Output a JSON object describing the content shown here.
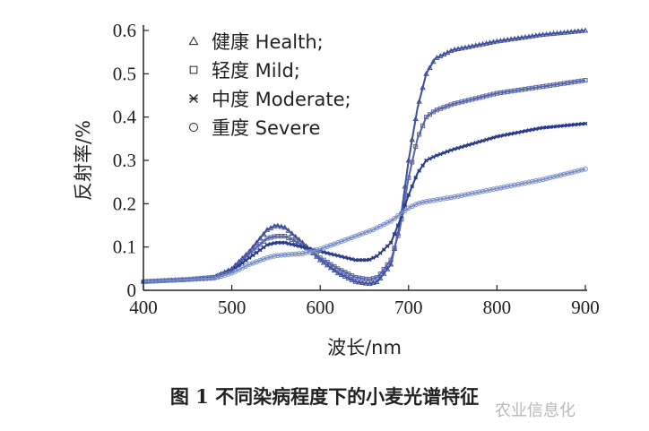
{
  "chart_data": {
    "type": "line",
    "title": "",
    "xlabel": "波长/nm",
    "ylabel": "反射率/%",
    "xlim": [
      400,
      900
    ],
    "ylim": [
      0,
      0.6
    ],
    "xticks": [
      "400",
      "500",
      "600",
      "700",
      "800",
      "900"
    ],
    "yticks": [
      "0",
      "0.1",
      "0.2",
      "0.3",
      "0.4",
      "0.5",
      "0.6"
    ],
    "grid": false,
    "legend_position": "top-left",
    "series": [
      {
        "name": "健康 Health;",
        "marker": "triangle",
        "color": "#3f4f9c",
        "points": [
          [
            400,
            0.02
          ],
          [
            450,
            0.025
          ],
          [
            480,
            0.03
          ],
          [
            500,
            0.05
          ],
          [
            520,
            0.09
          ],
          [
            540,
            0.14
          ],
          [
            550,
            0.15
          ],
          [
            560,
            0.145
          ],
          [
            580,
            0.11
          ],
          [
            600,
            0.07
          ],
          [
            620,
            0.04
          ],
          [
            640,
            0.02
          ],
          [
            655,
            0.015
          ],
          [
            665,
            0.02
          ],
          [
            680,
            0.06
          ],
          [
            690,
            0.15
          ],
          [
            700,
            0.3
          ],
          [
            710,
            0.42
          ],
          [
            720,
            0.5
          ],
          [
            730,
            0.535
          ],
          [
            750,
            0.555
          ],
          [
            800,
            0.575
          ],
          [
            850,
            0.59
          ],
          [
            900,
            0.6
          ]
        ]
      },
      {
        "name": "轻度 Mild;",
        "marker": "square",
        "color": "#5563aa",
        "points": [
          [
            400,
            0.02
          ],
          [
            450,
            0.025
          ],
          [
            480,
            0.03
          ],
          [
            500,
            0.045
          ],
          [
            520,
            0.085
          ],
          [
            540,
            0.12
          ],
          [
            550,
            0.125
          ],
          [
            560,
            0.125
          ],
          [
            580,
            0.105
          ],
          [
            600,
            0.075
          ],
          [
            620,
            0.05
          ],
          [
            640,
            0.03
          ],
          [
            655,
            0.025
          ],
          [
            665,
            0.03
          ],
          [
            680,
            0.07
          ],
          [
            690,
            0.14
          ],
          [
            700,
            0.26
          ],
          [
            710,
            0.35
          ],
          [
            720,
            0.4
          ],
          [
            730,
            0.415
          ],
          [
            750,
            0.43
          ],
          [
            800,
            0.455
          ],
          [
            850,
            0.47
          ],
          [
            900,
            0.485
          ]
        ]
      },
      {
        "name": "中度 Moderate;",
        "marker": "cross",
        "color": "#283a8a",
        "points": [
          [
            400,
            0.02
          ],
          [
            450,
            0.025
          ],
          [
            480,
            0.03
          ],
          [
            500,
            0.045
          ],
          [
            520,
            0.075
          ],
          [
            540,
            0.105
          ],
          [
            550,
            0.11
          ],
          [
            560,
            0.11
          ],
          [
            580,
            0.1
          ],
          [
            600,
            0.09
          ],
          [
            620,
            0.08
          ],
          [
            640,
            0.07
          ],
          [
            655,
            0.07
          ],
          [
            665,
            0.08
          ],
          [
            680,
            0.11
          ],
          [
            690,
            0.16
          ],
          [
            700,
            0.22
          ],
          [
            710,
            0.27
          ],
          [
            720,
            0.3
          ],
          [
            730,
            0.31
          ],
          [
            750,
            0.325
          ],
          [
            800,
            0.355
          ],
          [
            850,
            0.375
          ],
          [
            900,
            0.385
          ]
        ]
      },
      {
        "name": "重度 Severe",
        "marker": "circle",
        "color": "#7a8fc8",
        "points": [
          [
            400,
            0.02
          ],
          [
            450,
            0.025
          ],
          [
            480,
            0.028
          ],
          [
            500,
            0.04
          ],
          [
            520,
            0.06
          ],
          [
            540,
            0.075
          ],
          [
            550,
            0.08
          ],
          [
            560,
            0.082
          ],
          [
            580,
            0.085
          ],
          [
            600,
            0.095
          ],
          [
            620,
            0.11
          ],
          [
            640,
            0.125
          ],
          [
            660,
            0.14
          ],
          [
            680,
            0.16
          ],
          [
            690,
            0.175
          ],
          [
            700,
            0.19
          ],
          [
            710,
            0.2
          ],
          [
            720,
            0.205
          ],
          [
            750,
            0.215
          ],
          [
            800,
            0.235
          ],
          [
            850,
            0.255
          ],
          [
            900,
            0.28
          ]
        ]
      }
    ]
  },
  "caption": "图 1 不同染病程度下的小麦光谱特征",
  "watermark": "农业信息化"
}
